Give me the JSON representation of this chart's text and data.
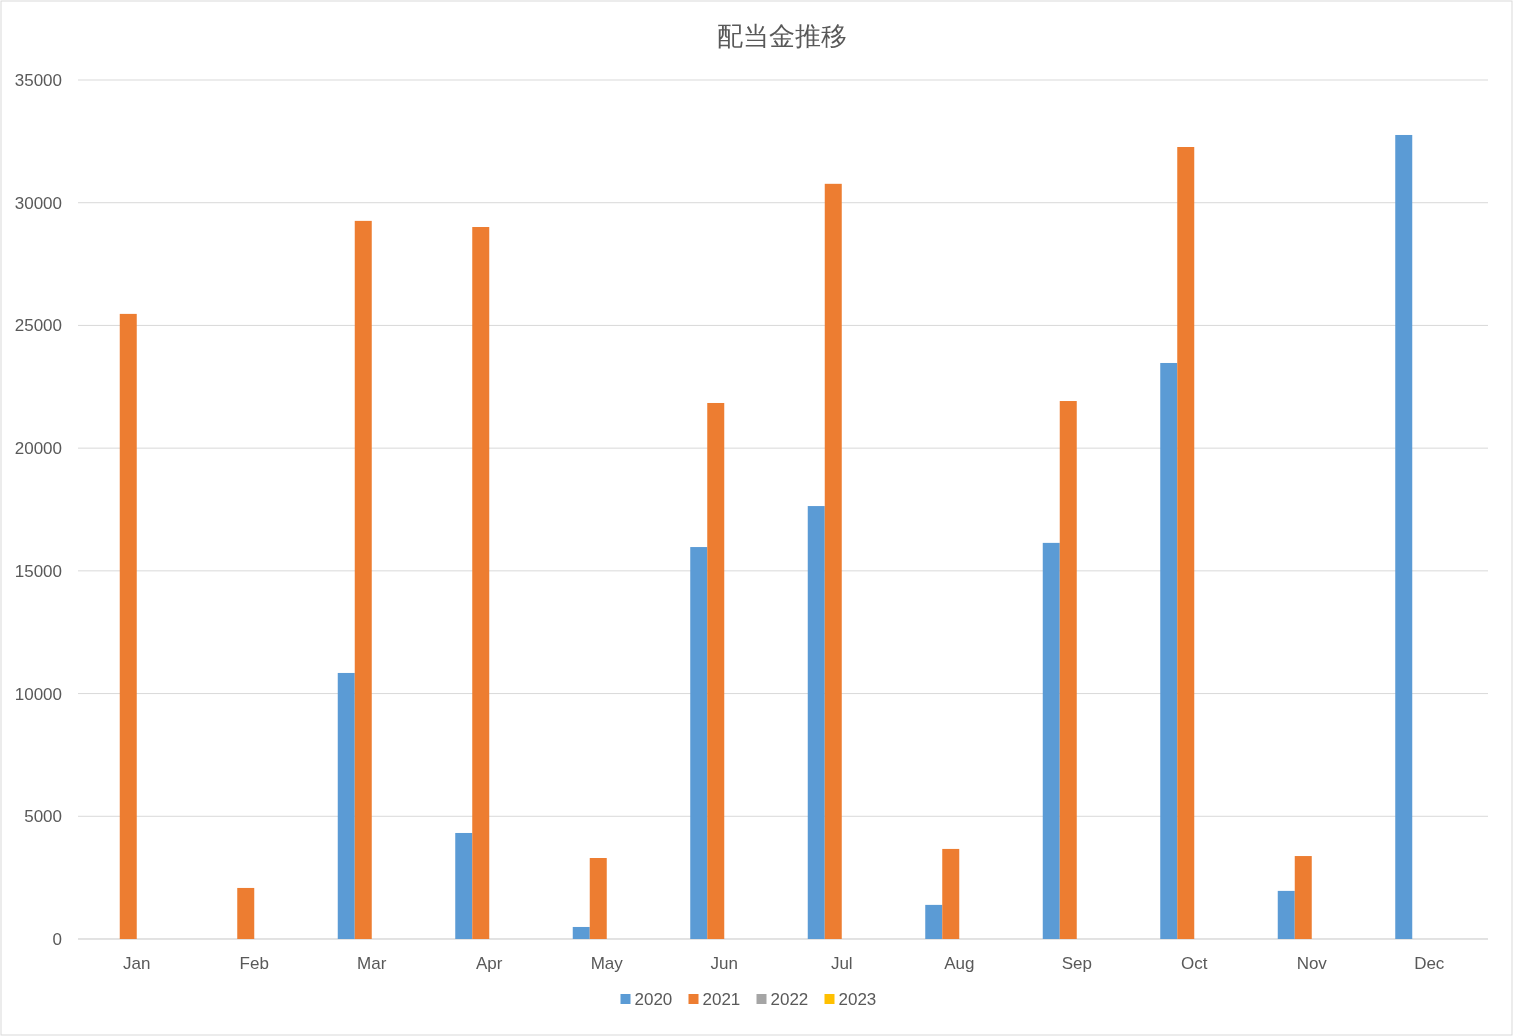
{
  "chart_data": {
    "type": "bar",
    "title": "配当金推移",
    "categories": [
      "Jan",
      "Feb",
      "Mar",
      "Apr",
      "May",
      "Jun",
      "Jul",
      "Aug",
      "Sep",
      "Oct",
      "Nov",
      "Dec"
    ],
    "series": [
      {
        "name": "2020",
        "color": "#5b9bd5",
        "values": [
          null,
          null,
          10840,
          4320,
          490,
          15970,
          17640,
          1390,
          16140,
          23470,
          1960,
          32760
        ]
      },
      {
        "name": "2021",
        "color": "#ed7d31",
        "values": [
          25470,
          2080,
          29260,
          29010,
          3300,
          21840,
          30770,
          3670,
          21920,
          32270,
          3380,
          null
        ]
      },
      {
        "name": "2022",
        "color": "#a5a5a5",
        "values": [
          null,
          null,
          null,
          null,
          null,
          null,
          null,
          null,
          null,
          null,
          null,
          null
        ]
      },
      {
        "name": "2023",
        "color": "#ffc000",
        "values": [
          null,
          null,
          null,
          null,
          null,
          null,
          null,
          null,
          null,
          null,
          null,
          null
        ]
      }
    ],
    "ylim": [
      0,
      35000
    ],
    "yticks": [
      0,
      5000,
      10000,
      15000,
      20000,
      25000,
      30000,
      35000
    ],
    "grid": "y",
    "legend": "bottom"
  }
}
